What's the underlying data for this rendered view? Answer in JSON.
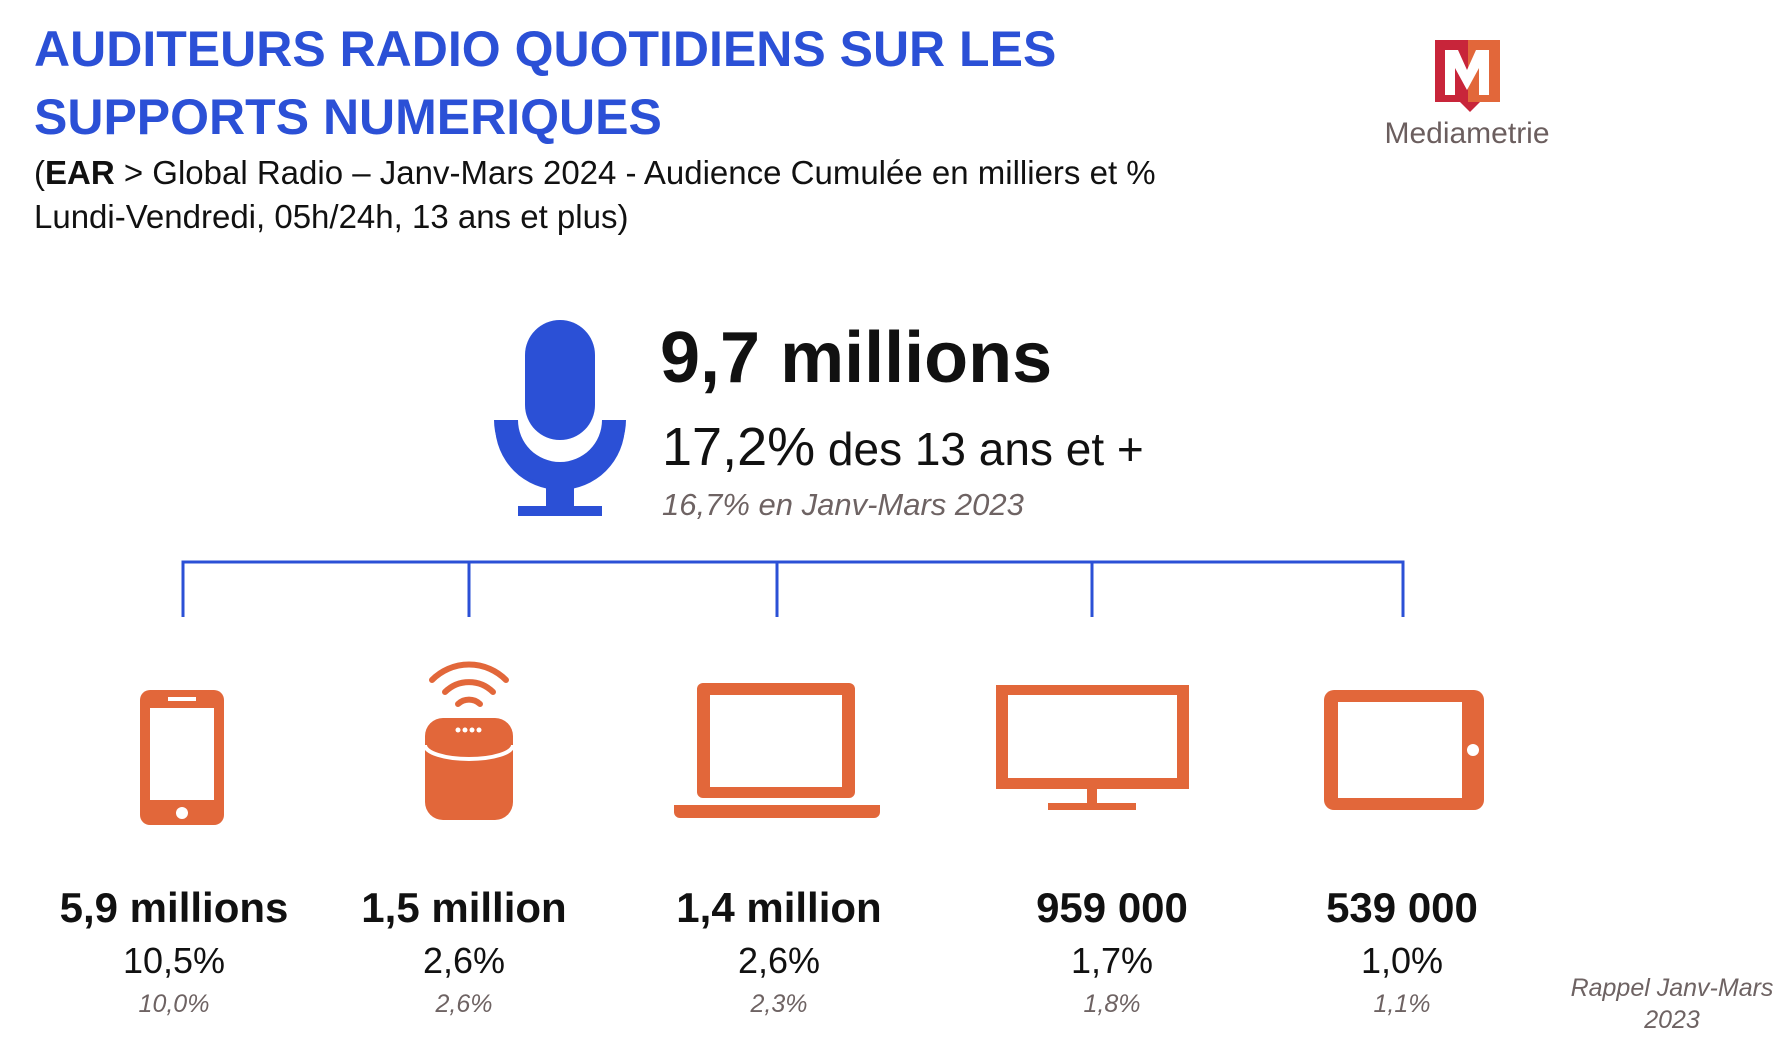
{
  "header": {
    "title_lines": [
      "AUDITEURS RADIO QUOTIDIENS SUR LES",
      "SUPPORTS NUMERIQUES"
    ],
    "subtitle": {
      "open": "(",
      "source": "EAR",
      "rest": " > Global Radio – Janv-Mars 2024 - Audience Cumulée en milliers et %",
      "line2": "Lundi-Vendredi, 05h/24h, 13 ans et plus)"
    }
  },
  "logo": "Mediametrie",
  "total": {
    "value": "9,7 millions",
    "percent": "17,2%",
    "percent_text": " des 13 ans et +",
    "previous": "16,7% en Janv-Mars 2023"
  },
  "devices": [
    {
      "value": "5,9 millions",
      "percent": "10,5%",
      "previous": "10,0%"
    },
    {
      "value": "1,5 million",
      "percent": "2,6%",
      "previous": "2,6%"
    },
    {
      "value": "1,4 million",
      "percent": "2,6%",
      "previous": "2,3%"
    },
    {
      "value": "959 000",
      "percent": "1,7%",
      "previous": "1,8%"
    },
    {
      "value": "539 000",
      "percent": "1,0%",
      "previous": "1,1%"
    }
  ],
  "footnote_lines": [
    "Rappel Janv-Mars",
    "2023"
  ]
}
